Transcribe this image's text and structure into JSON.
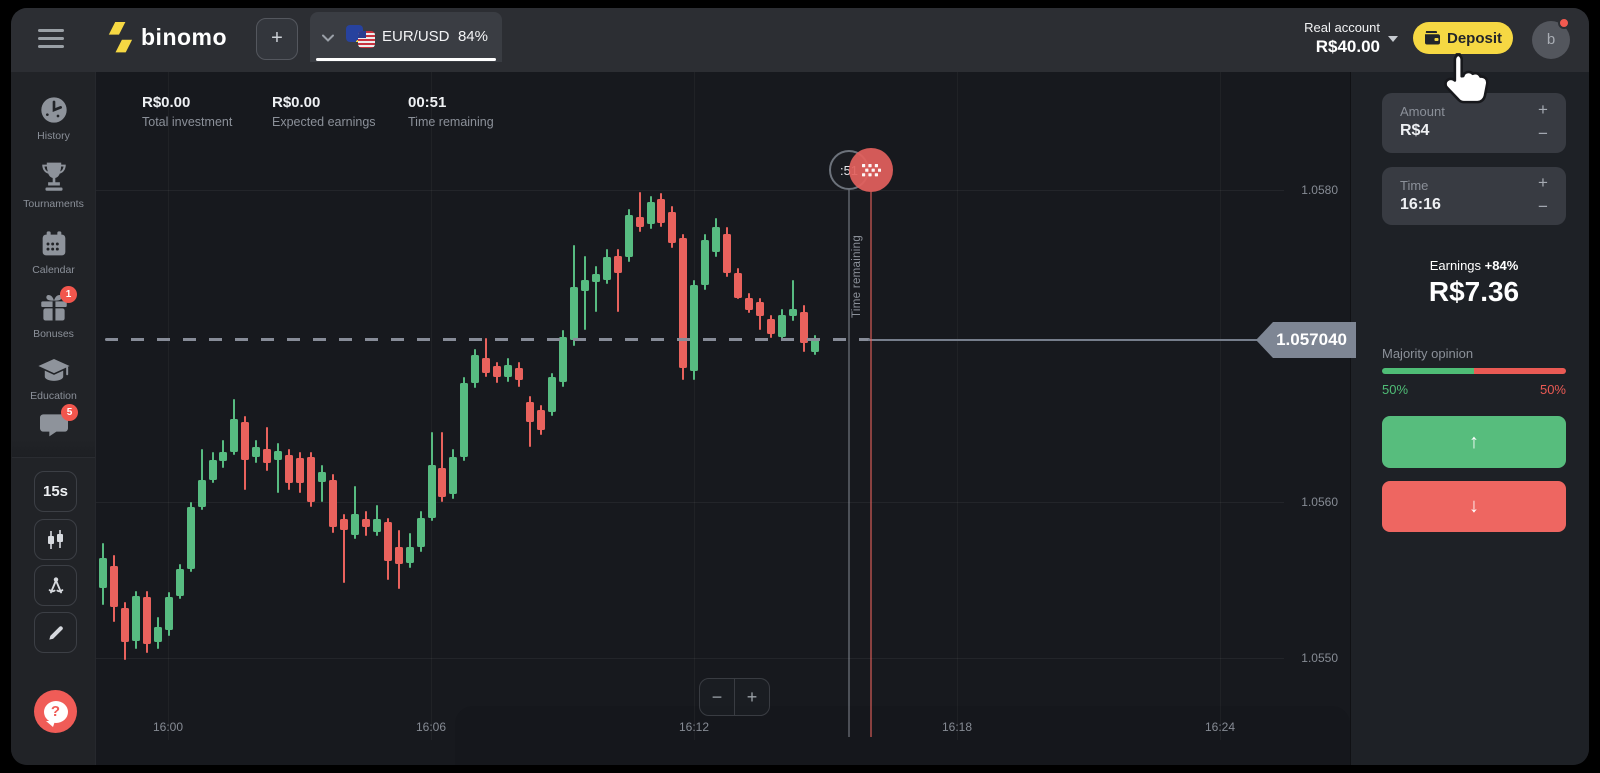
{
  "theme": {
    "green": "#57bb81",
    "red": "#e9625d",
    "yellow": "#f6d843",
    "panel_green": "#57bd7d",
    "panel_red": "#ee6661",
    "gray_text": "#8b9099"
  },
  "topbar": {
    "logo_text": "binomo",
    "add_asset_label": "+",
    "asset": {
      "pair": "EUR/USD",
      "payout": "84%"
    },
    "account": {
      "type_label": "Real account",
      "balance": "R$40.00"
    },
    "deposit_label": "Deposit",
    "avatar_letter": "b"
  },
  "sidebar": {
    "menu": [
      {
        "label": "History"
      },
      {
        "label": "Tournaments"
      },
      {
        "label": "Calendar"
      },
      {
        "label": "Bonuses",
        "badge": "1"
      },
      {
        "label": "Education"
      },
      {
        "label": "",
        "badge": "5"
      }
    ],
    "tools": [
      {
        "label": "15s"
      }
    ]
  },
  "chart": {
    "info": [
      {
        "value": "R$0.00",
        "label": "Total investment"
      },
      {
        "value": "R$0.00",
        "label": "Expected earnings"
      },
      {
        "value": "00:51",
        "label": "Time remaining"
      }
    ],
    "marker": {
      "countdown": ":51",
      "line_label": "Time remaining"
    },
    "price_tag": "1.057040",
    "zoom_out": "−",
    "zoom_in": "+"
  },
  "chart_data": {
    "type": "candlestick",
    "pair": "EUR/USD",
    "interval": "15s",
    "title": "",
    "x_ticks": [
      "16:00",
      "16:06",
      "16:12",
      "16:18",
      "16:24"
    ],
    "y_ticks": [
      "1.0580",
      "1.0560",
      "1.0550"
    ],
    "y_tick_values": [
      1.058,
      1.056,
      1.055
    ],
    "ylim": [
      1.05455,
      1.05835
    ],
    "current_price": 1.05704,
    "current_price_label": "1.057040",
    "grid": true,
    "candles_ohlc": [
      [
        1.05545,
        1.05574,
        1.05534,
        1.05564
      ],
      [
        1.05559,
        1.05566,
        1.05523,
        1.05533
      ],
      [
        1.05532,
        1.05536,
        1.05499,
        1.0551
      ],
      [
        1.05511,
        1.05543,
        1.05506,
        1.0554
      ],
      [
        1.05539,
        1.05543,
        1.05503,
        1.05509
      ],
      [
        1.0551,
        1.05526,
        1.05506,
        1.0552
      ],
      [
        1.05518,
        1.05542,
        1.05514,
        1.05539
      ],
      [
        1.0554,
        1.0556,
        1.05538,
        1.05557
      ],
      [
        1.05557,
        1.056,
        1.05555,
        1.05597
      ],
      [
        1.05597,
        1.05634,
        1.05595,
        1.05614
      ],
      [
        1.05614,
        1.05632,
        1.05612,
        1.05627
      ],
      [
        1.05626,
        1.0564,
        1.05622,
        1.05632
      ],
      [
        1.05632,
        1.05666,
        1.0563,
        1.05653
      ],
      [
        1.05651,
        1.05655,
        1.05608,
        1.05627
      ],
      [
        1.05629,
        1.0564,
        1.05625,
        1.05635
      ],
      [
        1.05634,
        1.05648,
        1.0562,
        1.05625
      ],
      [
        1.05627,
        1.05638,
        1.05606,
        1.05633
      ],
      [
        1.0563,
        1.05634,
        1.05608,
        1.05612
      ],
      [
        1.05628,
        1.05632,
        1.05606,
        1.05612
      ],
      [
        1.05629,
        1.05632,
        1.05597,
        1.056
      ],
      [
        1.05613,
        1.05624,
        1.056,
        1.05619
      ],
      [
        1.05614,
        1.05618,
        1.0558,
        1.05584
      ],
      [
        1.05589,
        1.05592,
        1.05548,
        1.05582
      ],
      [
        1.05579,
        1.0561,
        1.05576,
        1.05592
      ],
      [
        1.05589,
        1.05594,
        1.05578,
        1.05584
      ],
      [
        1.05581,
        1.05598,
        1.05578,
        1.05589
      ],
      [
        1.05587,
        1.0559,
        1.0555,
        1.05562
      ],
      [
        1.05571,
        1.05582,
        1.05544,
        1.0556
      ],
      [
        1.05561,
        1.0558,
        1.05558,
        1.05571
      ],
      [
        1.05571,
        1.05594,
        1.05568,
        1.0559
      ],
      [
        1.0559,
        1.05645,
        1.05588,
        1.05624
      ],
      [
        1.05622,
        1.05645,
        1.056,
        1.05603
      ],
      [
        1.05605,
        1.05634,
        1.05602,
        1.05629
      ],
      [
        1.05629,
        1.0568,
        1.05626,
        1.05676
      ],
      [
        1.05676,
        1.05698,
        1.05673,
        1.05694
      ],
      [
        1.05692,
        1.05705,
        1.0568,
        1.05683
      ],
      [
        1.05687,
        1.0569,
        1.05676,
        1.0568
      ],
      [
        1.0568,
        1.05692,
        1.05677,
        1.05688
      ],
      [
        1.05686,
        1.0569,
        1.05674,
        1.05678
      ],
      [
        1.05664,
        1.05668,
        1.05635,
        1.05651
      ],
      [
        1.05659,
        1.05662,
        1.05643,
        1.05646
      ],
      [
        1.05658,
        1.05683,
        1.05655,
        1.0568
      ],
      [
        1.05677,
        1.0571,
        1.05674,
        1.05706
      ],
      [
        1.05704,
        1.05765,
        1.057,
        1.05738
      ],
      [
        1.05735,
        1.05758,
        1.0571,
        1.05742
      ],
      [
        1.05741,
        1.05751,
        1.05722,
        1.05746
      ],
      [
        1.05742,
        1.05762,
        1.0574,
        1.05757
      ],
      [
        1.05758,
        1.05762,
        1.05722,
        1.05747
      ],
      [
        1.05757,
        1.05788,
        1.05754,
        1.05784
      ],
      [
        1.05783,
        1.05799,
        1.05773,
        1.05776
      ],
      [
        1.05778,
        1.05796,
        1.05775,
        1.05792
      ],
      [
        1.05794,
        1.05798,
        1.05776,
        1.05779
      ],
      [
        1.05786,
        1.0579,
        1.05763,
        1.05766
      ],
      [
        1.05769,
        1.05772,
        1.05678,
        1.05686
      ],
      [
        1.05684,
        1.05742,
        1.05678,
        1.05739
      ],
      [
        1.05739,
        1.05772,
        1.05736,
        1.05768
      ],
      [
        1.0576,
        1.05782,
        1.05757,
        1.05776
      ],
      [
        1.05772,
        1.05776,
        1.05744,
        1.05747
      ],
      [
        1.05747,
        1.0575,
        1.0573,
        1.05731
      ],
      [
        1.05731,
        1.05734,
        1.05721,
        1.05723
      ],
      [
        1.05728,
        1.05731,
        1.0571,
        1.05719
      ],
      [
        1.05717,
        1.0572,
        1.05705,
        1.05708
      ],
      [
        1.05706,
        1.05724,
        1.05703,
        1.0572
      ],
      [
        1.05719,
        1.05742,
        1.05716,
        1.05724
      ],
      [
        1.05722,
        1.05726,
        1.05696,
        1.05702
      ],
      [
        1.05696,
        1.05707,
        1.05694,
        1.05704
      ]
    ]
  },
  "right_panel": {
    "amount": {
      "label": "Amount",
      "value": "R$4"
    },
    "time": {
      "label": "Time",
      "value": "16:16"
    },
    "earnings": {
      "label": "Earnings",
      "pct": "+84%",
      "value": "R$7.36"
    },
    "majority": {
      "label": "Majority opinion",
      "green_label": "50%",
      "red_label": "50%",
      "green_pct": 50
    },
    "up_arrow": "↑",
    "down_arrow": "↓"
  }
}
